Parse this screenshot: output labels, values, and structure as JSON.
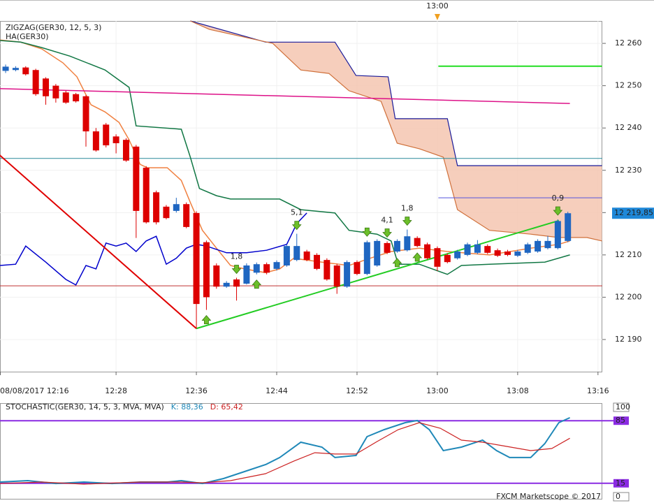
{
  "chart_data": [
    {
      "type": "candlestick",
      "name": "HA(GER30)",
      "up_color": "#1f66c1",
      "down_color": "#dd0000",
      "open": [
        12253.5,
        12253.7,
        12254.3,
        12253.7,
        12251.7,
        12250,
        12248.4,
        12248,
        12247.5,
        12239.2,
        12240.8,
        12238,
        12237.2,
        12235.6,
        12230.6,
        12224.8,
        12221.4,
        12220.4,
        12222,
        12219.9,
        12213,
        12207.5,
        12202.5,
        12204.2,
        12203.2,
        12205.8,
        12207.8,
        12206.7,
        12207.5,
        12208.8,
        12210.8,
        12210,
        12208.8,
        12207.5,
        12202.5,
        12208.3,
        12205.5,
        12207.5,
        12212.8,
        12210.8,
        12211.1,
        12214,
        12212.5,
        12211.6,
        12210,
        12209.2,
        12210,
        12210.5,
        12212.1,
        12211.1,
        12210.8,
        12209.8,
        12210.5,
        12210.8,
        12211.6,
        12211.6,
        12213.3
      ],
      "high": [
        12255,
        12254.6,
        12254.6,
        12254,
        12252,
        12250.4,
        12248.8,
        12248.3,
        12247.8,
        12240,
        12241.2,
        12238.5,
        12237.6,
        12236,
        12231,
        12225.2,
        12221.8,
        12223.5,
        12222.4,
        12220.3,
        12213.4,
        12208,
        12203.8,
        12204.6,
        12208,
        12208.2,
        12208.2,
        12208.7,
        12212.5,
        12215,
        12211.2,
        12210.4,
        12209.2,
        12207.9,
        12208.7,
        12208.7,
        12213.4,
        12213.7,
        12213.2,
        12213.7,
        12216,
        12214.4,
        12212.9,
        12212,
        12210.4,
        12211.2,
        12212.9,
        12213.5,
        12212.5,
        12211.5,
        12211.2,
        12211.2,
        12212.9,
        12213.7,
        12214.5,
        12218.4,
        12220.2
      ],
      "low": [
        12253,
        12253.4,
        12252.4,
        12247.6,
        12245.5,
        12246,
        12245.7,
        12246,
        12235.6,
        12234.4,
        12235.4,
        12234,
        12232,
        12214,
        12217.4,
        12217.2,
        12218.4,
        12220,
        12216.3,
        12192.6,
        12197,
        12202,
        12202.2,
        12199.2,
        12203,
        12205.4,
        12205.4,
        12206.3,
        12207.2,
        12208.5,
        12208.5,
        12206.4,
        12203.9,
        12200.8,
        12202.2,
        12205.2,
        12205.2,
        12207.2,
        12210.2,
        12210.5,
        12210.8,
        12211.8,
        12208.9,
        12206.2,
        12208,
        12208.9,
        12209.7,
        12210.2,
        12210.2,
        12209.5,
        12209.7,
        12209.5,
        12210.2,
        12210.5,
        12211.3,
        12211.3,
        12213
      ],
      "close": [
        12254.5,
        12254.2,
        12252.7,
        12248,
        12247.5,
        12247,
        12246,
        12246.3,
        12239.2,
        12234.7,
        12235.9,
        12236.4,
        12232.3,
        12220.4,
        12217.7,
        12217.7,
        12218.7,
        12222,
        12216.6,
        12198.4,
        12200,
        12202.5,
        12203.4,
        12202.5,
        12207.5,
        12207.8,
        12205.8,
        12208.3,
        12212.1,
        12212.1,
        12208.8,
        12206.7,
        12204.2,
        12202.5,
        12208.3,
        12205.5,
        12213,
        12213.3,
        12210.5,
        12213.3,
        12214.4,
        12212.1,
        12209.2,
        12207.2,
        12208.3,
        12210.8,
        12212.5,
        12212.5,
        12210.5,
        12209.8,
        12210,
        12210.8,
        12212.5,
        12213.3,
        12213.3,
        12218,
        12219.85
      ],
      "zigzag": {
        "name": "ZIGZAG(GER30, 12, 5, 3)",
        "color": "#22cc22",
        "segment_colors": [
          "#e00000",
          "#22cc22"
        ],
        "x": [
          -0.6,
          19,
          55.1
        ],
        "values": [
          12233.6,
          12192.6,
          12218.1
        ]
      },
      "overlays": [
        {
          "color": "#f08040",
          "x": [
            -0.6,
            1.5,
            3.6,
            5.7,
            7.1,
            8.5,
            9.9,
            11.3,
            12.3,
            13.4,
            14.1,
            16.1,
            17.5,
            18.4,
            19.6,
            21,
            22.4,
            23.8,
            25.9,
            27.3,
            28.7,
            31.5,
            34.2,
            36.3,
            38.4,
            41.2,
            44,
            48.2,
            52.3,
            55.1,
            56.2
          ],
          "values": [
            12260.8,
            12260.3,
            12258.7,
            12255.4,
            12252.1,
            12245.5,
            12243.8,
            12241.3,
            12237.2,
            12231.4,
            12230.6,
            12230.6,
            12227.6,
            12222.4,
            12215.8,
            12211.6,
            12207.5,
            12206.7,
            12205.8,
            12206.7,
            12209.2,
            12208.3,
            12207.5,
            12209.2,
            12210.8,
            12211.6,
            12210.8,
            12210,
            12211.6,
            12212.5,
            12213.3
          ]
        },
        {
          "color": "#117744",
          "x": [
            -0.6,
            1.5,
            3.6,
            6.4,
            9.9,
            12.3,
            13,
            17.5,
            18.4,
            19.3,
            21,
            22.4,
            27.3,
            29.4,
            32.8,
            34.2,
            37,
            38.4,
            39.1,
            41.2,
            44,
            45.4,
            48.2,
            53.7,
            56.2
          ],
          "values": [
            12260.7,
            12260.3,
            12259,
            12257,
            12253.7,
            12249.6,
            12240.5,
            12239.7,
            12233.1,
            12225.7,
            12224,
            12223.2,
            12223.2,
            12220.7,
            12219.9,
            12215.8,
            12214.9,
            12213.3,
            12207.8,
            12207.8,
            12205.4,
            12207.5,
            12207.8,
            12208.3,
            12210
          ]
        },
        {
          "color": "#0000cc",
          "x": [
            -0.6,
            1,
            2,
            4,
            6,
            7,
            8,
            9,
            10,
            11,
            12,
            13,
            14,
            15,
            16,
            17,
            18,
            19,
            20,
            22,
            24,
            26,
            28,
            29,
            30
          ],
          "values": [
            12207.5,
            12207.8,
            12212.1,
            12208.3,
            12204.2,
            12202.9,
            12207.5,
            12206.7,
            12212.8,
            12212.1,
            12212.8,
            12210.8,
            12213.3,
            12214.4,
            12207.8,
            12209.2,
            12211.6,
            12212.5,
            12212.1,
            12210.5,
            12210.5,
            12211.1,
            12212.5,
            12217.4,
            12219.9
          ]
        },
        {
          "color": "#dd1188",
          "x": [
            -0.6,
            56.2
          ],
          "values": [
            12249.3,
            12245.8
          ]
        }
      ],
      "cloud": {
        "fill": "#f5c6b0",
        "upper": {
          "color": "#1a1a99",
          "x": [
            18.4,
            25.9,
            32.8,
            34.9,
            38.1,
            38.8,
            44,
            45,
            59.4
          ],
          "values": [
            12265.3,
            12260.3,
            12260.3,
            12252.4,
            12252.1,
            12242.2,
            12242.2,
            12231.1,
            12231.1
          ]
        },
        "lower": {
          "color": "#d0703a",
          "x": [
            18.4,
            20.3,
            26.6,
            29.4,
            32.2,
            34.2,
            37.4,
            39,
            41.2,
            43.6,
            45,
            48.2,
            52.3,
            55.1,
            57.9,
            59.4
          ],
          "values": [
            12265.3,
            12263.3,
            12260,
            12253.7,
            12252.9,
            12248.8,
            12246.3,
            12236.4,
            12235.1,
            12233.1,
            12220.7,
            12215.8,
            12214.9,
            12214.1,
            12214.1,
            12213.3
          ]
        }
      },
      "hlines": [
        {
          "value": 12232.8,
          "color": "#2a8a9a",
          "x": [
            -0.56,
            59.43
          ]
        },
        {
          "value": 12202.7,
          "color": "#c03030",
          "x": [
            -0.56,
            59.43
          ]
        },
        {
          "value": 12223.5,
          "color": "#5555dd",
          "x": [
            43.1,
            59.4
          ]
        },
        {
          "value": 12254.6,
          "color": "#22dd22",
          "x": [
            43.1,
            59.4
          ]
        }
      ],
      "signals": [
        {
          "index": 20,
          "dir": "up"
        },
        {
          "index": 25,
          "dir": "up"
        },
        {
          "index": 39,
          "dir": "up"
        },
        {
          "index": 41,
          "dir": "up"
        },
        {
          "index": 23,
          "dir": "down",
          "label": "1,8"
        },
        {
          "index": 29,
          "dir": "down",
          "label": "5,1"
        },
        {
          "index": 36,
          "dir": "down"
        },
        {
          "index": 38,
          "dir": "down",
          "label": "4,1"
        },
        {
          "index": 40,
          "dir": "down",
          "label": "1,8"
        },
        {
          "index": 55,
          "dir": "down",
          "label": "0,9"
        }
      ],
      "last_price": {
        "value": 12219.85,
        "label": "12 219,85"
      },
      "time_marker": {
        "value": 43,
        "label": "13:00"
      },
      "xlim": [
        -0.56,
        59.43
      ],
      "xticks": [
        {
          "value": -1,
          "label": "08/08/2017 12:16"
        },
        {
          "value": 11,
          "label": "12:28"
        },
        {
          "value": 19,
          "label": "12:36"
        },
        {
          "value": 27,
          "label": "12:44"
        },
        {
          "value": 35,
          "label": "12:52"
        },
        {
          "value": 43,
          "label": "13:00"
        },
        {
          "value": 51,
          "label": "13:08"
        },
        {
          "value": 59,
          "label": "13:16"
        }
      ],
      "ylim": [
        12182.4,
        12265.3
      ],
      "yticks": [
        {
          "value": 12190,
          "label": "12 190"
        },
        {
          "value": 12200,
          "label": "12 200"
        },
        {
          "value": 12210,
          "label": "12 210"
        },
        {
          "value": 12220,
          "label": "12 220"
        },
        {
          "value": 12230,
          "label": "12 230"
        },
        {
          "value": 12240,
          "label": "12 240"
        },
        {
          "value": 12250,
          "label": "12 250"
        },
        {
          "value": 12260,
          "label": "12 260"
        }
      ]
    },
    {
      "type": "line",
      "title": "STOCHASTIC(GER30, 14, 5, 3, MVA, MVA)",
      "series": [
        {
          "name": "K",
          "label": "K: 88,36",
          "color": "#1f88b8",
          "x": [
            -0.6,
            2.2,
            5,
            7.8,
            10.6,
            13.4,
            16.1,
            17.5,
            19.6,
            21.7,
            23.8,
            25.9,
            27.3,
            29.4,
            31.5,
            32.8,
            34.9,
            36,
            37.7,
            39.8,
            41,
            42.2,
            43.6,
            45.4,
            47.5,
            48.9,
            50.2,
            52.3,
            53.7,
            55.1,
            56.2
          ],
          "values": [
            16.4,
            18,
            14.8,
            16.4,
            14.8,
            16.4,
            16.4,
            18,
            14.8,
            20.3,
            28.1,
            35.9,
            43.8,
            60.9,
            55.5,
            43.8,
            46.1,
            67.2,
            75,
            82.8,
            85.2,
            75,
            51.6,
            55.5,
            63.3,
            51.6,
            43.8,
            43.8,
            59.4,
            82.8,
            88.36
          ]
        },
        {
          "name": "D",
          "label": "D: 65,42",
          "color": "#cc2222",
          "x": [
            -0.6,
            3.6,
            7.8,
            13.4,
            17.5,
            19.6,
            22.4,
            25.9,
            28.7,
            30.8,
            32.8,
            34.9,
            37,
            39.1,
            41.2,
            43.3,
            45.4,
            47.5,
            49.5,
            52.3,
            54.4,
            56.2
          ],
          "values": [
            14.8,
            16.4,
            14.1,
            16.4,
            16.4,
            15.6,
            18,
            25.8,
            39.8,
            49.2,
            47.7,
            47.7,
            61.7,
            75,
            82.8,
            76.6,
            63.3,
            60.9,
            57,
            51.6,
            53.9,
            65.42
          ]
        }
      ],
      "levels": [
        85,
        15
      ],
      "level_color": "#8a2be2",
      "xlim": [
        -0.56,
        59.43
      ],
      "ylim": [
        0,
        100
      ],
      "yticks": [
        100,
        85,
        15,
        0
      ],
      "footer": "FXCM Marketscope © 2017"
    }
  ]
}
